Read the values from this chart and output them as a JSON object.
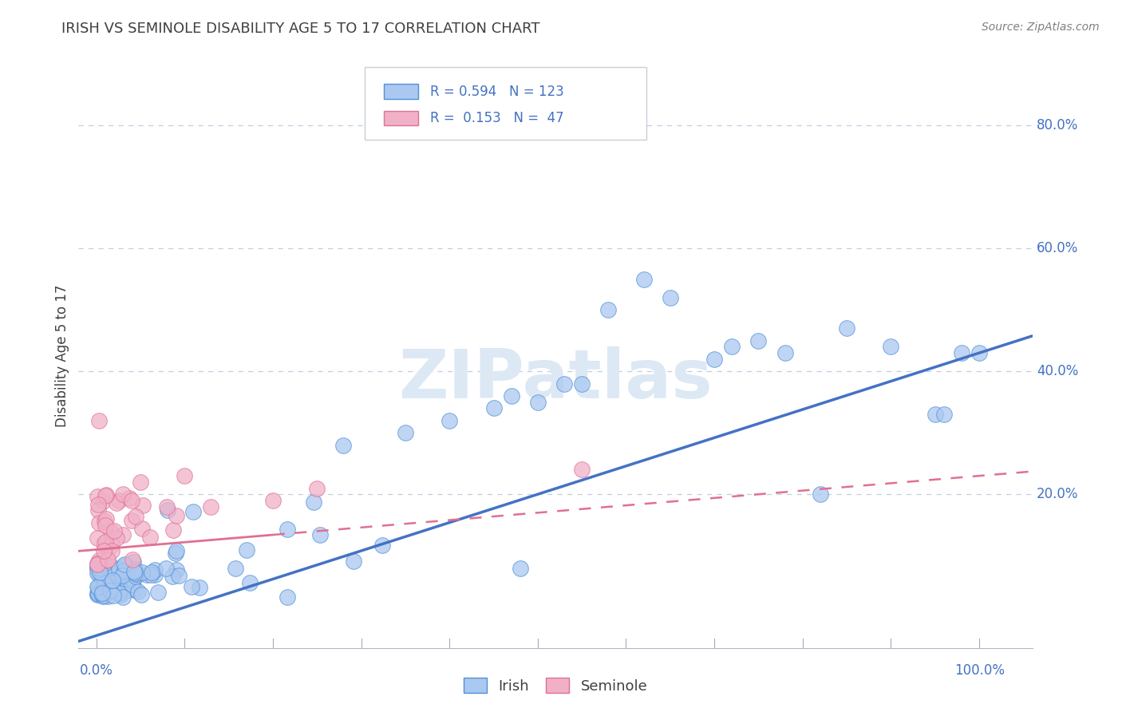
{
  "title": "IRISH VS SEMINOLE DISABILITY AGE 5 TO 17 CORRELATION CHART",
  "source": "Source: ZipAtlas.com",
  "ylabel": "Disability Age 5 to 17",
  "irish_R": 0.594,
  "irish_N": 123,
  "seminole_R": 0.153,
  "seminole_N": 47,
  "irish_color": "#aac8f0",
  "irish_edge_color": "#5090d8",
  "irish_line_color": "#4472c4",
  "seminole_color": "#f0b0c8",
  "seminole_edge_color": "#e07090",
  "seminole_line_color": "#e07090",
  "background_color": "#ffffff",
  "grid_color": "#c0cfe0",
  "title_color": "#404040",
  "axis_label_color": "#4472c4",
  "ylabel_color": "#404040",
  "source_color": "#808080",
  "watermark_color": "#dde8f5",
  "legend_border_color": "#c8d0d8",
  "right_label_color": "#4472c4"
}
